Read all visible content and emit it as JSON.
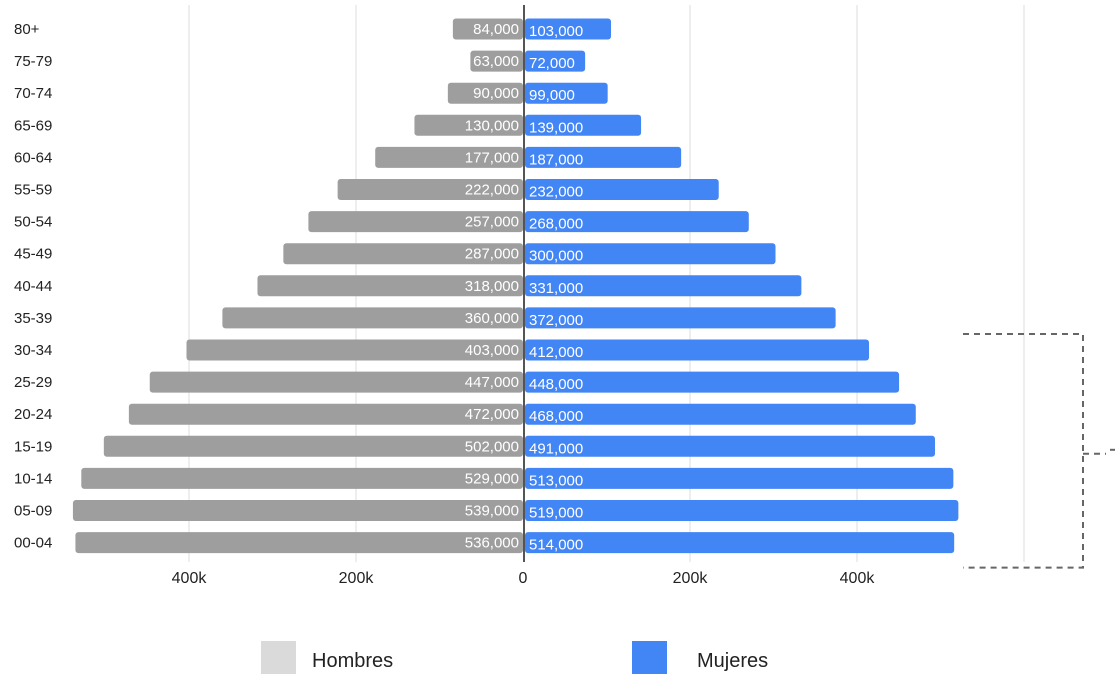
{
  "chart_data": {
    "type": "bar",
    "orientation": "horizontal",
    "layout": "population-pyramid",
    "categories": [
      "80+",
      "75-79",
      "70-74",
      "65-69",
      "60-64",
      "55-59",
      "50-54",
      "45-49",
      "40-44",
      "35-39",
      "30-34",
      "25-29",
      "20-24",
      "15-19",
      "10-14",
      "05-09",
      "00-04"
    ],
    "series": [
      {
        "name": "Hombres",
        "side": "left",
        "color": "#9e9e9e",
        "values": [
          84000,
          63000,
          90000,
          130000,
          177000,
          222000,
          257000,
          287000,
          318000,
          360000,
          403000,
          447000,
          472000,
          502000,
          529000,
          539000,
          536000
        ],
        "labels": [
          "84,000",
          "63,000",
          "90,000",
          "130,000",
          "177,000",
          "222,000",
          "257,000",
          "287,000",
          "318,000",
          "360,000",
          "403,000",
          "447,000",
          "472,000",
          "502,000",
          "529,000",
          "539,000",
          "536,000"
        ]
      },
      {
        "name": "Mujeres",
        "side": "right",
        "color": "#4285f4",
        "values": [
          103000,
          72000,
          99000,
          139000,
          187000,
          232000,
          268000,
          300000,
          331000,
          372000,
          412000,
          448000,
          468000,
          491000,
          513000,
          519000,
          514000
        ],
        "labels": [
          "103,000",
          "72,000",
          "99,000",
          "139,000",
          "187,000",
          "232,000",
          "268,000",
          "300,000",
          "331,000",
          "372,000",
          "412,000",
          "448,000",
          "468,000",
          "491,000",
          "513,000",
          "519,000",
          "514,000"
        ]
      }
    ],
    "x_ticks": [
      {
        "value": -400000,
        "label": "400k"
      },
      {
        "value": -200000,
        "label": "200k"
      },
      {
        "value": 0,
        "label": "0"
      },
      {
        "value": 200000,
        "label": "200k"
      },
      {
        "value": 400000,
        "label": "400k"
      }
    ],
    "gridlines": [
      -400000,
      -200000,
      0,
      200000,
      400000,
      600000
    ],
    "xlim": [
      -540000,
      600000
    ],
    "grid": true,
    "legend_position": "bottom",
    "legend": [
      {
        "label": "Hombres",
        "color": "#dadada"
      },
      {
        "label": "Mujeres",
        "color": "#4285f4"
      }
    ],
    "annotation": {
      "type": "bracket",
      "from_category": "30-34",
      "to_category": "00-04"
    },
    "title": "",
    "xlabel": "",
    "ylabel": ""
  }
}
